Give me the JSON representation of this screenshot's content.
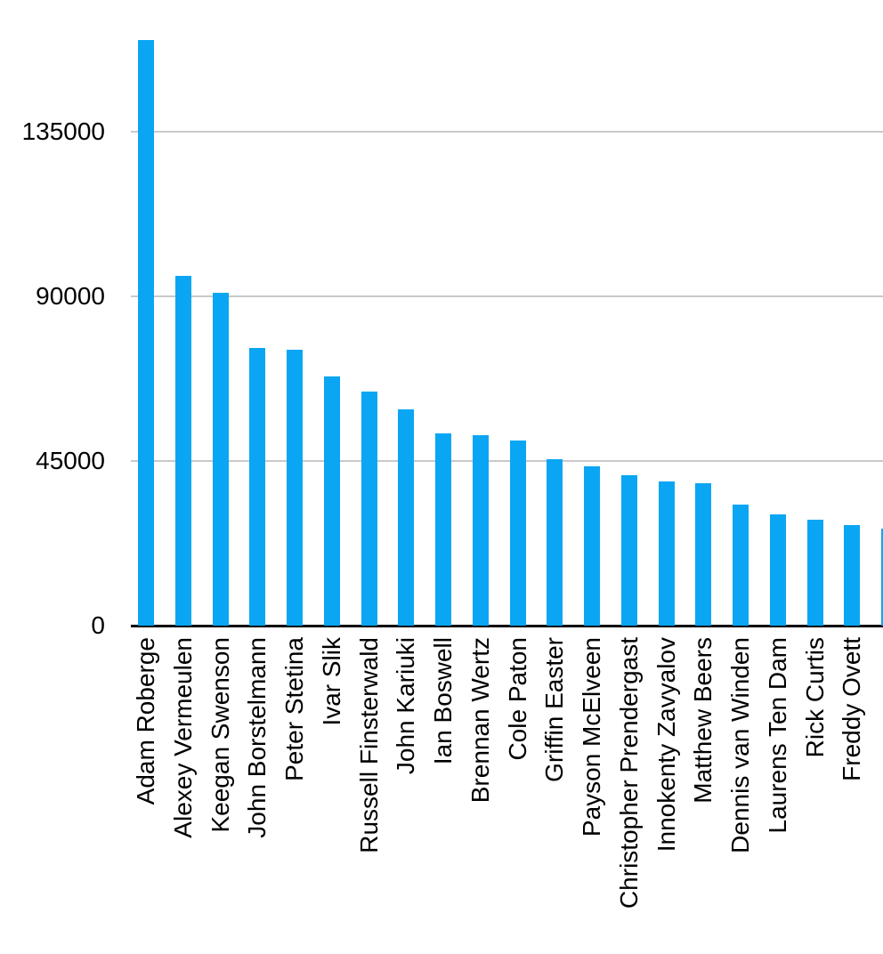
{
  "chart_data": {
    "type": "bar",
    "title": "",
    "xlabel": "",
    "ylabel": "",
    "categories": [
      "Adam Roberge",
      "Alexey Vermeulen",
      "Keegan Swenson",
      "John Borstelmann",
      "Peter Stetina",
      "Ivar Slik",
      "Russell Finsterwald",
      "John Kariuki",
      "Ian Boswell",
      "Brennan Wertz",
      "Cole Paton",
      "Griffin Easter",
      "Payson McElveen",
      "Christopher Prendergast",
      "Innokenty Zavyalov",
      "Matthew Beers",
      "Dennis van Winden",
      "Laurens Ten Dam",
      "Rick Curtis",
      "Freddy Ovett",
      ""
    ],
    "values": [
      160000,
      95500,
      91000,
      76000,
      75500,
      68000,
      64000,
      59000,
      52500,
      52000,
      50500,
      45500,
      43500,
      41000,
      39500,
      39000,
      33000,
      30500,
      29000,
      27500,
      26500
    ],
    "yticks": [
      0,
      45000,
      90000,
      135000
    ],
    "ylim": [
      0,
      171000
    ],
    "grid": "horizontal",
    "legend": "none",
    "x_label_rotation_deg": 90,
    "last_bar_clipped_at_right_edge": true,
    "colors": {
      "bar": "#0AA6F4",
      "gridline": "#C9C9C9",
      "axis_line": "#000000",
      "label_text": "#000000",
      "background": "#FFFFFF"
    }
  }
}
